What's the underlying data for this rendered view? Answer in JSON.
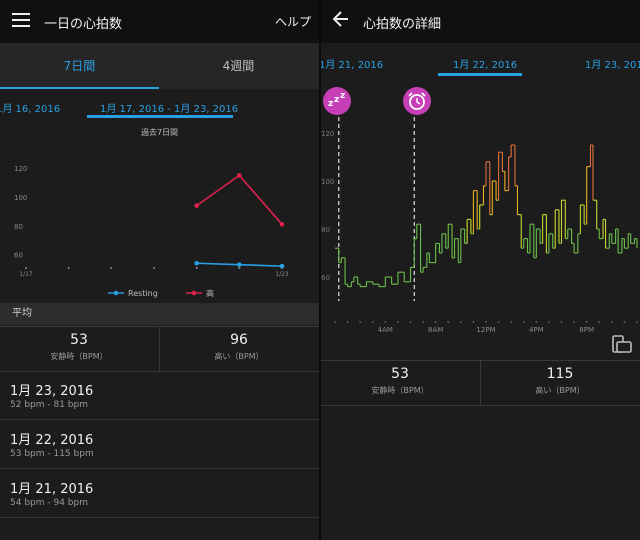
{
  "left": {
    "title": "一日の心拍数",
    "help": "ヘルプ",
    "tabs": [
      {
        "label": "7日間",
        "active": true
      },
      {
        "label": "4週間",
        "active": false
      }
    ],
    "range_prev": "1月 16, 2016",
    "range_current": "1月 17, 2016 - 1月 23, 2016",
    "chart_caption": "過去7日間",
    "section_avg": "平均",
    "stats": [
      {
        "value": "53",
        "label": "安静時（BPM）"
      },
      {
        "value": "96",
        "label": "高い（BPM）"
      }
    ],
    "days": [
      {
        "date": "1月 23, 2016",
        "range": "52 bpm - 81 bpm"
      },
      {
        "date": "1月 22, 2016",
        "range": "53 bpm - 115 bpm"
      },
      {
        "date": "1月 21, 2016",
        "range": "54 bpm - 94 bpm"
      }
    ]
  },
  "right": {
    "title": "心拍数の詳細",
    "dates": [
      "1月 21, 2016",
      "1月 22, 2016",
      "1月 23, 2016"
    ],
    "stats": [
      {
        "value": "53",
        "label": "安静時（BPM）"
      },
      {
        "value": "115",
        "label": "高い（BPM）"
      }
    ],
    "sleep_icon": "zzz-sleep-icon",
    "alarm_icon": "alarm-clock-icon",
    "fullscreen_icon": "rotate-screen-icon"
  },
  "chart_data": [
    {
      "type": "line",
      "title": "",
      "x": [
        "1/17",
        "1/18",
        "1/19",
        "1/20",
        "1/21",
        "1/22",
        "1/23"
      ],
      "x_tick_labels": [
        "1/17",
        "1/23"
      ],
      "y_ticks": [
        60,
        80,
        100,
        120
      ],
      "ylim": [
        50,
        125
      ],
      "legend": "bottom",
      "series": [
        {
          "name": "Resting",
          "color": "#2aa0e4",
          "values": [
            null,
            null,
            null,
            null,
            54,
            53,
            52
          ]
        },
        {
          "name": "高",
          "color": "#e0234e",
          "values": [
            null,
            null,
            null,
            null,
            94,
            115,
            81
          ]
        }
      ]
    },
    {
      "type": "line",
      "title": "",
      "x_tick_labels": [
        "4AM",
        "8AM",
        "12PM",
        "4PM",
        "8PM"
      ],
      "y_ticks": [
        60,
        80,
        100,
        120
      ],
      "ylim": [
        50,
        125
      ],
      "markers": [
        {
          "hour": 0.3,
          "icon": "sleep"
        },
        {
          "hour": 6.3,
          "icon": "alarm"
        }
      ],
      "series": [
        {
          "name": "",
          "x_hours": [
            0,
            0.3,
            0.5,
            0.8,
            1,
            1.3,
            1.5,
            1.8,
            2,
            2.5,
            3,
            3.5,
            4,
            4.5,
            5,
            5.5,
            6,
            6.3,
            6.5,
            6.8,
            7,
            7.3,
            7.5,
            8,
            8.3,
            8.5,
            8.8,
            9,
            9.3,
            9.5,
            9.8,
            10,
            10.3,
            10.5,
            10.8,
            11,
            11.3,
            11.5,
            11.8,
            12,
            12.3,
            12.5,
            12.8,
            13,
            13.3,
            13.5,
            13.8,
            14,
            14.3,
            14.5,
            14.8,
            15,
            15.3,
            15.5,
            15.8,
            16,
            16.3,
            16.5,
            16.8,
            17,
            17.3,
            17.5,
            17.8,
            18,
            18.3,
            18.5,
            18.8,
            19,
            19.3,
            19.5,
            19.8,
            20,
            20.3,
            20.5,
            20.8,
            21,
            21.3,
            21.5,
            21.8,
            22,
            22.3,
            22.5,
            22.8,
            23,
            23.3,
            23.5,
            23.8,
            24
          ],
          "values": [
            72,
            66,
            68,
            57,
            56,
            58,
            60,
            57,
            56,
            58,
            57,
            56,
            60,
            57,
            62,
            58,
            64,
            76,
            82,
            62,
            64,
            70,
            66,
            74,
            70,
            78,
            72,
            82,
            68,
            76,
            66,
            80,
            74,
            84,
            78,
            96,
            80,
            90,
            98,
            108,
            86,
            100,
            92,
            112,
            104,
            96,
            110,
            115,
            98,
            86,
            72,
            76,
            70,
            82,
            68,
            80,
            74,
            86,
            70,
            78,
            72,
            88,
            74,
            92,
            76,
            80,
            74,
            70,
            78,
            90,
            82,
            106,
            115,
            92,
            80,
            76,
            84,
            72,
            78,
            74,
            80,
            70,
            76,
            72,
            78,
            74,
            76,
            72
          ]
        }
      ]
    }
  ]
}
